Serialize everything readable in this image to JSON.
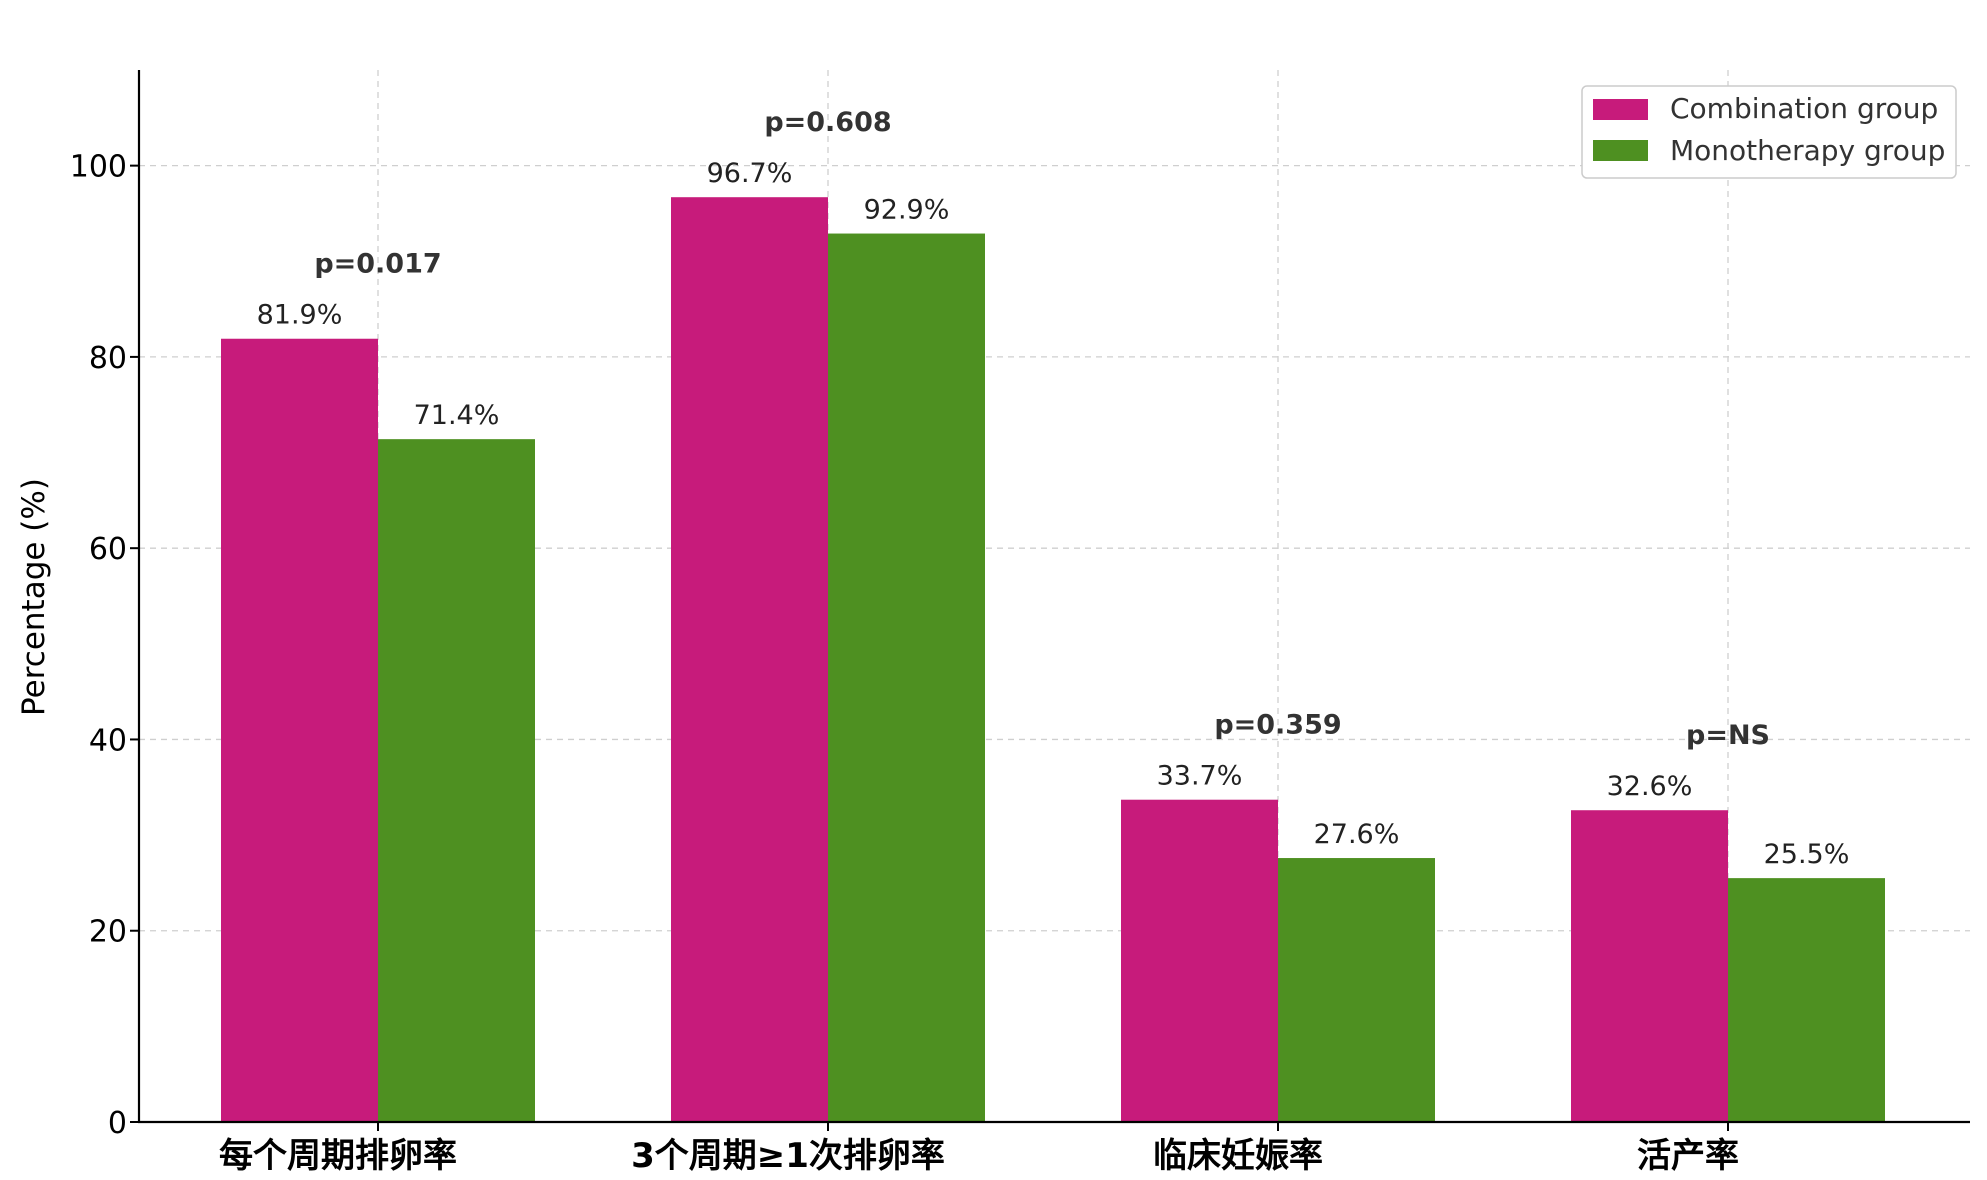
{
  "chart_data": {
    "type": "bar",
    "title": "",
    "xlabel": "",
    "ylabel": "Percentage (%)",
    "ylim": [
      0,
      110
    ],
    "yticks": [
      0,
      20,
      40,
      60,
      80,
      100
    ],
    "grid": true,
    "legend_position": "top-right",
    "categories": [
      "每个周期排卵率",
      "3个周期≥1次排卵率",
      "临床妊娠率",
      "活产率"
    ],
    "series": [
      {
        "name": "Combination group",
        "color": "#c71b7b",
        "values": [
          81.9,
          96.7,
          33.7,
          32.6
        ],
        "labels": [
          "81.9%",
          "96.7%",
          "33.7%",
          "32.6%"
        ]
      },
      {
        "name": "Monotherapy group",
        "color": "#4e9021",
        "values": [
          71.4,
          92.9,
          27.6,
          25.5
        ],
        "labels": [
          "71.4%",
          "92.9%",
          "27.6%",
          "25.5%"
        ]
      }
    ],
    "annotations": [
      "p=0.017",
      "p=0.608",
      "p=0.359",
      "p=NS"
    ]
  }
}
